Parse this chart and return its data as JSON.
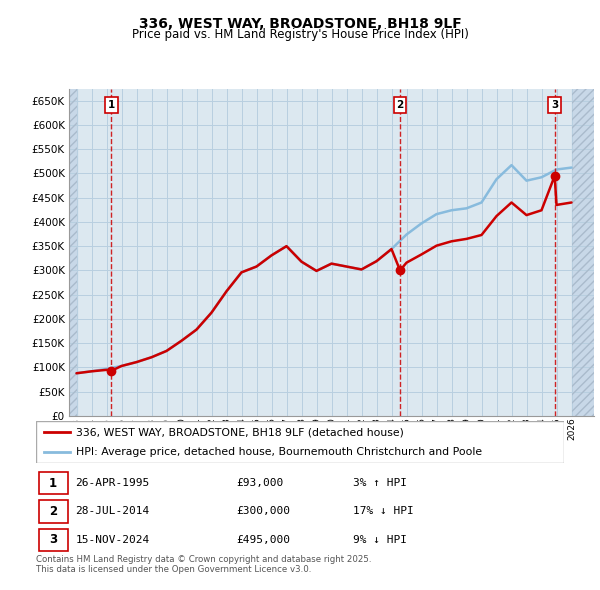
{
  "title": "336, WEST WAY, BROADSTONE, BH18 9LF",
  "subtitle": "Price paid vs. HM Land Registry's House Price Index (HPI)",
  "ylabel_ticks": [
    "£0",
    "£50K",
    "£100K",
    "£150K",
    "£200K",
    "£250K",
    "£300K",
    "£350K",
    "£400K",
    "£450K",
    "£500K",
    "£550K",
    "£600K",
    "£650K"
  ],
  "ytick_values": [
    0,
    50000,
    100000,
    150000,
    200000,
    250000,
    300000,
    350000,
    400000,
    450000,
    500000,
    550000,
    600000,
    650000
  ],
  "ylim": [
    0,
    675000
  ],
  "xlim_start": 1992.5,
  "xlim_end": 2027.5,
  "sale_dates": [
    1995.32,
    2014.57,
    2024.88
  ],
  "sale_prices": [
    93000,
    300000,
    495000
  ],
  "sale_labels": [
    "1",
    "2",
    "3"
  ],
  "red_line_color": "#cc0000",
  "blue_line_color": "#88bbdd",
  "bg_color": "#dce8f0",
  "grid_color": "#b8cfe0",
  "hatch_bg_color": "#c8d8e8",
  "transaction_info": [
    {
      "num": "1",
      "date": "26-APR-1995",
      "price": "£93,000",
      "hpi": "3% ↑ HPI"
    },
    {
      "num": "2",
      "date": "28-JUL-2014",
      "price": "£300,000",
      "hpi": "17% ↓ HPI"
    },
    {
      "num": "3",
      "date": "15-NOV-2024",
      "price": "£495,000",
      "hpi": "9% ↓ HPI"
    }
  ],
  "legend_entries": [
    "336, WEST WAY, BROADSTONE, BH18 9LF (detached house)",
    "HPI: Average price, detached house, Bournemouth Christchurch and Poole"
  ],
  "footnote": "Contains HM Land Registry data © Crown copyright and database right 2025.\nThis data is licensed under the Open Government Licence v3.0.",
  "hpi_years": [
    1993,
    1994,
    1995,
    1996,
    1997,
    1998,
    1999,
    2000,
    2001,
    2002,
    2003,
    2004,
    2005,
    2006,
    2007,
    2008,
    2009,
    2010,
    2011,
    2012,
    2013,
    2014,
    2015,
    2016,
    2017,
    2018,
    2019,
    2020,
    2021,
    2022,
    2023,
    2024,
    2025,
    2026
  ],
  "hpi_values": [
    88000,
    92000,
    97000,
    103000,
    111000,
    121000,
    134000,
    155000,
    178000,
    213000,
    257000,
    296000,
    308000,
    331000,
    350000,
    318000,
    299000,
    314000,
    308000,
    302000,
    319000,
    344000,
    374000,
    397000,
    416000,
    424000,
    428000,
    440000,
    488000,
    517000,
    485000,
    492000,
    508000,
    512000
  ],
  "price_line_years": [
    1993.0,
    1994.0,
    1995.0,
    1995.32,
    1996.0,
    1997.0,
    1998.0,
    1999.0,
    2000.0,
    2001.0,
    2002.0,
    2003.0,
    2004.0,
    2005.0,
    2006.0,
    2007.0,
    2008.0,
    2009.0,
    2010.0,
    2011.0,
    2012.0,
    2013.0,
    2014.0,
    2014.57,
    2015.0,
    2016.0,
    2017.0,
    2018.0,
    2019.0,
    2020.0,
    2021.0,
    2022.0,
    2023.0,
    2024.0,
    2024.88,
    2025.0,
    2026.0
  ],
  "price_line_values": [
    88000,
    92000,
    95000,
    93000,
    103000,
    111000,
    121000,
    134000,
    155000,
    178000,
    213000,
    257000,
    296000,
    308000,
    331000,
    350000,
    318000,
    299000,
    314000,
    308000,
    302000,
    319000,
    344000,
    300000,
    316000,
    333000,
    351000,
    360000,
    365000,
    373000,
    412000,
    440000,
    414000,
    424000,
    495000,
    435000,
    440000
  ]
}
